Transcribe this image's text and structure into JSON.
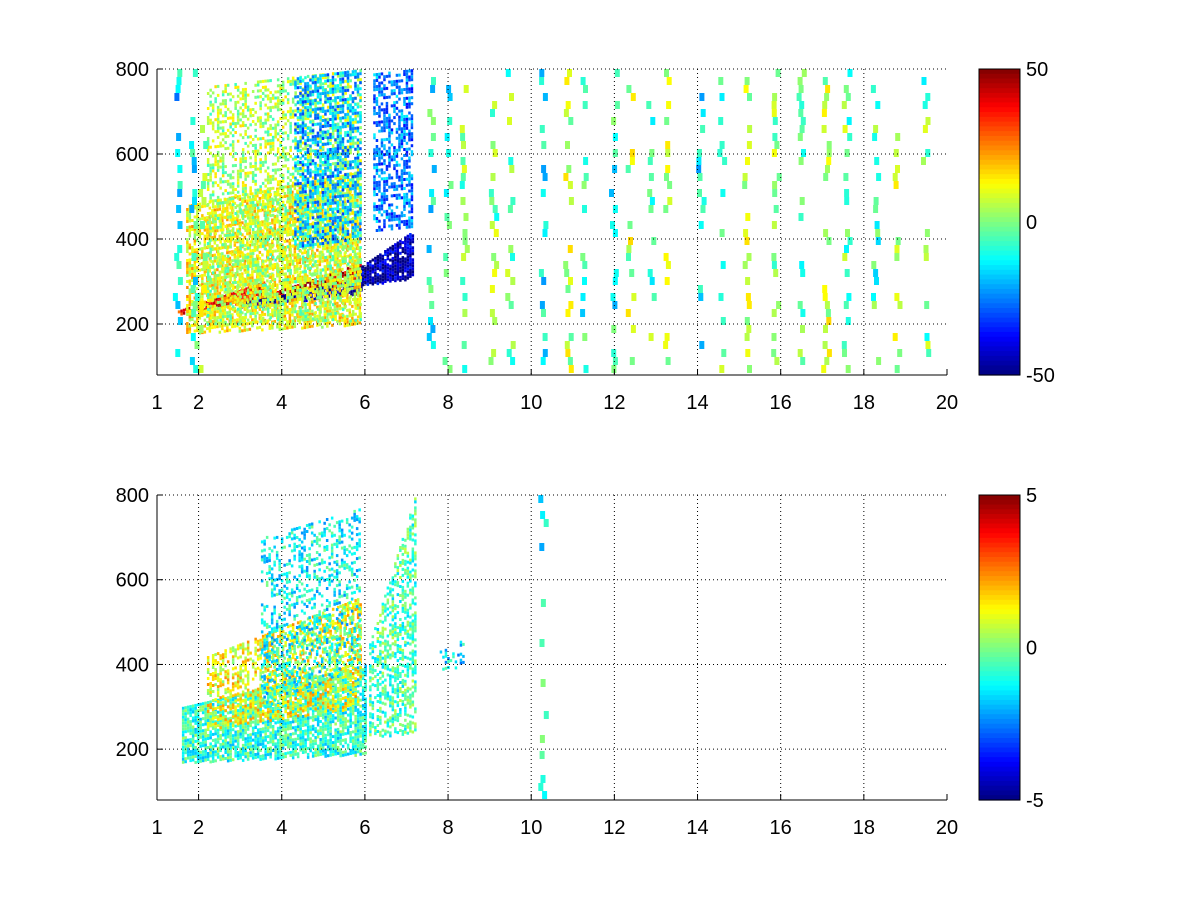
{
  "figure": {
    "background": "#ffffff",
    "colormap": "jet"
  },
  "chart_data": [
    {
      "type": "heatmap",
      "title": "",
      "xlabel": "",
      "ylabel": "",
      "x_ticks": [
        {
          "value": 1,
          "label": "1"
        },
        {
          "value": 2,
          "label": "2"
        },
        {
          "value": 4,
          "label": "4"
        },
        {
          "value": 6,
          "label": "6"
        },
        {
          "value": 8,
          "label": "8"
        },
        {
          "value": 10,
          "label": "10"
        },
        {
          "value": 12,
          "label": "12"
        },
        {
          "value": 14,
          "label": "14"
        },
        {
          "value": 16,
          "label": "16"
        },
        {
          "value": 18,
          "label": "18"
        },
        {
          "value": 20,
          "label": "20"
        }
      ],
      "y_ticks": [
        {
          "value": 200,
          "label": "200"
        },
        {
          "value": 400,
          "label": "400"
        },
        {
          "value": 600,
          "label": "600"
        },
        {
          "value": 800,
          "label": "800"
        }
      ],
      "xlim": [
        1,
        20
      ],
      "ylim": [
        80,
        800
      ],
      "grid": true,
      "colorbar": {
        "range": [
          -50,
          50
        ],
        "ticks": [
          {
            "value": 50,
            "label": "50"
          },
          {
            "value": 0,
            "label": "0"
          },
          {
            "value": -50,
            "label": "-50"
          }
        ]
      },
      "features": [
        {
          "x": [
            1.5,
            3.6
          ],
          "y_start": [
            225,
            262
          ],
          "y_end": [
            232,
            302
          ],
          "value": 38,
          "density": 0.95
        },
        {
          "x": [
            3.4,
            5.9
          ],
          "y_start": [
            245,
            300
          ],
          "y_end": [
            262,
            345
          ],
          "value": 45,
          "density": 0.9
        },
        {
          "x": [
            3.0,
            5.9
          ],
          "y_start": [
            238,
            275
          ],
          "y_end": [
            250,
            305
          ],
          "value": -46,
          "density": 0.9
        },
        {
          "x": [
            5.8,
            7.15
          ],
          "y_start": [
            290,
            310
          ],
          "y_end": [
            330,
            420
          ],
          "value": -45,
          "density": 0.9
        },
        {
          "x": [
            1.7,
            5.9
          ],
          "y_start": [
            180,
            200
          ],
          "y_end": [
            480,
            560
          ],
          "value": 12,
          "density": 0.65
        },
        {
          "x": [
            2.2,
            5.9
          ],
          "y_start": [
            200,
            210
          ],
          "y_end": [
            760,
            800
          ],
          "value": 4,
          "density": 0.45
        },
        {
          "x": [
            4.3,
            5.9
          ],
          "y_start": [
            380,
            400
          ],
          "y_end": [
            780,
            800
          ],
          "value": -20,
          "density": 0.5
        },
        {
          "x": [
            6.2,
            7.15
          ],
          "y_start": [
            420,
            430
          ],
          "y_end": [
            790,
            800
          ],
          "value": -25,
          "density": 0.55
        }
      ],
      "noise_columns": [
        {
          "x": 1.5,
          "value": -15
        },
        {
          "x": 1.9,
          "value": -10
        },
        {
          "x": 2.1,
          "value": 5
        },
        {
          "x": 7.6,
          "value": -10
        },
        {
          "x": 8.0,
          "value": -8
        },
        {
          "x": 8.4,
          "value": 0
        },
        {
          "x": 9.1,
          "value": 0
        },
        {
          "x": 9.5,
          "value": -3
        },
        {
          "x": 10.3,
          "value": -12
        },
        {
          "x": 10.9,
          "value": 8
        },
        {
          "x": 11.3,
          "value": -8
        },
        {
          "x": 12.0,
          "value": -10
        },
        {
          "x": 12.4,
          "value": 5
        },
        {
          "x": 12.9,
          "value": -3
        },
        {
          "x": 13.3,
          "value": 4
        },
        {
          "x": 14.1,
          "value": -14
        },
        {
          "x": 14.6,
          "value": -3
        },
        {
          "x": 15.2,
          "value": 6
        },
        {
          "x": 15.9,
          "value": 2
        },
        {
          "x": 16.5,
          "value": -4
        },
        {
          "x": 17.1,
          "value": 5
        },
        {
          "x": 17.6,
          "value": -2
        },
        {
          "x": 18.3,
          "value": -6
        },
        {
          "x": 18.8,
          "value": 3
        },
        {
          "x": 19.5,
          "value": -2
        }
      ]
    },
    {
      "type": "heatmap",
      "title": "",
      "xlabel": "",
      "ylabel": "",
      "x_ticks": [
        {
          "value": 1,
          "label": "1"
        },
        {
          "value": 2,
          "label": "2"
        },
        {
          "value": 4,
          "label": "4"
        },
        {
          "value": 6,
          "label": "6"
        },
        {
          "value": 8,
          "label": "8"
        },
        {
          "value": 10,
          "label": "10"
        },
        {
          "value": 12,
          "label": "12"
        },
        {
          "value": 14,
          "label": "14"
        },
        {
          "value": 16,
          "label": "16"
        },
        {
          "value": 18,
          "label": "18"
        },
        {
          "value": 20,
          "label": "20"
        }
      ],
      "y_ticks": [
        {
          "value": 200,
          "label": "200"
        },
        {
          "value": 400,
          "label": "400"
        },
        {
          "value": 600,
          "label": "600"
        },
        {
          "value": 800,
          "label": "800"
        }
      ],
      "xlim": [
        1,
        20
      ],
      "ylim": [
        80,
        800
      ],
      "grid": true,
      "colorbar": {
        "range": [
          -5,
          5
        ],
        "ticks": [
          {
            "value": 5,
            "label": "5"
          },
          {
            "value": 0,
            "label": "0"
          },
          {
            "value": -5,
            "label": "-5"
          }
        ]
      },
      "features": [
        {
          "x": [
            1.6,
            6.0
          ],
          "y_start": [
            170,
            190
          ],
          "y_end": [
            300,
            400
          ],
          "value": -0.8,
          "density": 0.8
        },
        {
          "x": [
            2.2,
            5.9
          ],
          "y_start": [
            250,
            300
          ],
          "y_end": [
            420,
            560
          ],
          "value": 1.2,
          "density": 0.55
        },
        {
          "x": [
            3.5,
            5.9
          ],
          "y_start": [
            300,
            400
          ],
          "y_end": [
            700,
            770
          ],
          "value": -1.2,
          "density": 0.35
        },
        {
          "x": [
            6.1,
            7.2
          ],
          "y_start": [
            230,
            240
          ],
          "y_end": [
            450,
            800
          ],
          "value": -0.5,
          "density": 0.55
        },
        {
          "x": [
            7.8,
            8.4
          ],
          "y_start": [
            380,
            390
          ],
          "y_end": [
            440,
            460
          ],
          "value": -1.5,
          "density": 0.35
        }
      ],
      "noise_columns": [
        {
          "x": 10.3,
          "value": -1
        }
      ]
    }
  ]
}
